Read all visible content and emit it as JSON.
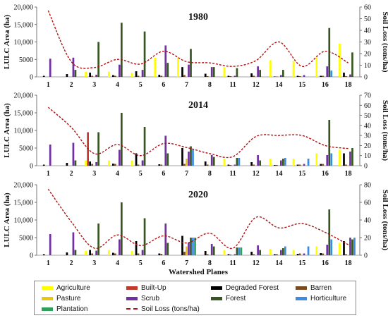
{
  "chart_data": {
    "type": "bar",
    "xlabel": "Watershed Planes",
    "ylabel": "LULC Area (ha)",
    "y2label": "Soil Loss (tons/ha)",
    "categories": [
      "1",
      "2",
      "3",
      "4",
      "5",
      "6",
      "7",
      "8",
      "11",
      "12",
      "14",
      "15",
      "16",
      "18"
    ],
    "series_names": [
      "Agriculture",
      "Built-Up",
      "Degraded Forest",
      "Barren",
      "Pasture",
      "Scrub",
      "Forest",
      "Horticulture",
      "Plantation",
      "Soil Loss (tons/ha)"
    ],
    "colors": {
      "Agriculture": "#ffff00",
      "Built-Up": "#c0392b",
      "Degraded Forest": "#000000",
      "Barren": "#7a4b1e",
      "Pasture": "#e6c619",
      "Scrub": "#7030a0",
      "Forest": "#375623",
      "Horticulture": "#3a8de0",
      "Plantation": "#2ea05a",
      "Soil Loss (tons/ha)": "#b01010"
    },
    "legend_position": "bottom",
    "panels": [
      {
        "title": "1980",
        "ylim": [
          0,
          20000
        ],
        "yticks": [
          0,
          5000,
          10000,
          15000,
          20000
        ],
        "ytick_labels": [
          "0",
          "5000",
          "10,000",
          "15,000",
          "20,000"
        ],
        "y2lim": [
          0,
          60
        ],
        "y2ticks": [
          0,
          10,
          20,
          30,
          40,
          50,
          60
        ],
        "bars": {
          "Agriculture": [
            0,
            0,
            1500,
            1500,
            1200,
            5500,
            5500,
            0,
            2800,
            0,
            4800,
            4500,
            5500,
            9500
          ],
          "Built-Up": [
            0,
            0,
            0,
            0,
            0,
            0,
            0,
            0,
            0,
            0,
            0,
            0,
            0,
            0
          ],
          "Degraded Forest": [
            300,
            800,
            1200,
            500,
            1600,
            600,
            2800,
            900,
            300,
            1000,
            100,
            300,
            300,
            1200
          ],
          "Barren": [
            0,
            0,
            300,
            300,
            300,
            300,
            500,
            200,
            200,
            300,
            100,
            200,
            300,
            200
          ],
          "Pasture": [
            0,
            0,
            0,
            0,
            0,
            0,
            0,
            0,
            0,
            0,
            0,
            0,
            0,
            0
          ],
          "Scrub": [
            5200,
            5500,
            600,
            3500,
            2000,
            9000,
            3500,
            2800,
            300,
            3000,
            500,
            500,
            3000,
            700
          ],
          "Forest": [
            0,
            2000,
            10000,
            15500,
            13000,
            4000,
            8000,
            2800,
            2500,
            2000,
            2000,
            0,
            14000,
            7000
          ],
          "Horticulture": [
            0,
            0,
            0,
            0,
            0,
            0,
            0,
            0,
            0,
            0,
            0,
            0,
            1800,
            0
          ],
          "Plantation": [
            0,
            0,
            0,
            0,
            0,
            0,
            0,
            0,
            0,
            0,
            0,
            0,
            0,
            0
          ]
        },
        "soil_loss": [
          57,
          13,
          8,
          15,
          11,
          22,
          13,
          12,
          9,
          14,
          30,
          9,
          22,
          12
        ]
      },
      {
        "title": "2014",
        "ylim": [
          0,
          20000
        ],
        "yticks": [
          0,
          5000,
          10000,
          15000,
          20000
        ],
        "ytick_labels": [
          "0",
          "5000",
          "10,000",
          "15,000",
          "20,000"
        ],
        "y2lim": [
          0,
          70
        ],
        "y2ticks": [
          0,
          10,
          20,
          30,
          40,
          50,
          60,
          70
        ],
        "bars": {
          "Agriculture": [
            0,
            0,
            1500,
            1500,
            1500,
            0,
            0,
            0,
            2000,
            0,
            2000,
            2000,
            3500,
            4500
          ],
          "Built-Up": [
            0,
            0,
            9500,
            0,
            0,
            0,
            0,
            0,
            0,
            0,
            0,
            0,
            0,
            0
          ],
          "Degraded Forest": [
            300,
            800,
            1200,
            600,
            3500,
            400,
            5000,
            1200,
            300,
            1000,
            200,
            300,
            500,
            3500
          ],
          "Barren": [
            0,
            0,
            500,
            500,
            300,
            300,
            500,
            300,
            200,
            300,
            200,
            300,
            500,
            300
          ],
          "Pasture": [
            0,
            0,
            0,
            0,
            0,
            0,
            2000,
            0,
            0,
            0,
            0,
            0,
            0,
            0
          ],
          "Scrub": [
            6000,
            6500,
            1000,
            4500,
            1500,
            8500,
            4000,
            3000,
            300,
            3000,
            1500,
            500,
            3000,
            4000
          ],
          "Forest": [
            0,
            1500,
            9500,
            15000,
            11000,
            3500,
            5500,
            2500,
            2200,
            1500,
            2000,
            0,
            13000,
            5000
          ],
          "Horticulture": [
            0,
            0,
            0,
            0,
            0,
            0,
            4500,
            0,
            2200,
            0,
            2200,
            2000,
            3500,
            0
          ],
          "Plantation": [
            0,
            0,
            0,
            0,
            0,
            0,
            0,
            0,
            0,
            0,
            0,
            0,
            0,
            0
          ]
        },
        "soil_loss": [
          58,
          38,
          12,
          21,
          10,
          22,
          18,
          12,
          9,
          29,
          30,
          30,
          20,
          17
        ]
      },
      {
        "title": "2020",
        "ylim": [
          0,
          20000
        ],
        "yticks": [
          0,
          5000,
          10000,
          15000,
          20000
        ],
        "ytick_labels": [
          "0",
          "5000",
          "10,000",
          "15,000",
          "20,000"
        ],
        "y2lim": [
          0,
          80
        ],
        "y2ticks": [
          0,
          20,
          40,
          60,
          80
        ],
        "bars": {
          "Agriculture": [
            0,
            0,
            1200,
            1500,
            1200,
            0,
            0,
            0,
            1500,
            0,
            1800,
            1500,
            2500,
            3500
          ],
          "Built-Up": [
            0,
            0,
            0,
            0,
            0,
            0,
            0,
            0,
            0,
            0,
            0,
            0,
            0,
            0
          ],
          "Degraded Forest": [
            300,
            800,
            1500,
            700,
            4000,
            500,
            5500,
            1200,
            300,
            1000,
            300,
            400,
            600,
            4000
          ],
          "Barren": [
            0,
            0,
            500,
            500,
            500,
            400,
            1000,
            300,
            200,
            300,
            300,
            500,
            500,
            300
          ],
          "Pasture": [
            0,
            0,
            0,
            0,
            0,
            0,
            2500,
            0,
            0,
            0,
            0,
            0,
            0,
            0
          ],
          "Scrub": [
            6000,
            6500,
            1300,
            4500,
            1500,
            9000,
            3500,
            3200,
            300,
            2800,
            1500,
            500,
            3000,
            5000
          ],
          "Forest": [
            0,
            1500,
            9000,
            15000,
            10500,
            3500,
            5000,
            2500,
            2200,
            1500,
            2000,
            0,
            13000,
            4500
          ],
          "Horticulture": [
            0,
            0,
            0,
            0,
            0,
            0,
            5000,
            0,
            2200,
            0,
            2500,
            2500,
            4500,
            5000
          ],
          "Plantation": [
            0,
            0,
            0,
            0,
            0,
            0,
            5000,
            0,
            2200,
            0,
            0,
            0,
            0,
            0
          ]
        },
        "soil_loss": [
          75,
          38,
          8,
          23,
          11,
          22,
          14,
          25,
          8,
          43,
          31,
          36,
          26,
          12
        ]
      }
    ]
  }
}
